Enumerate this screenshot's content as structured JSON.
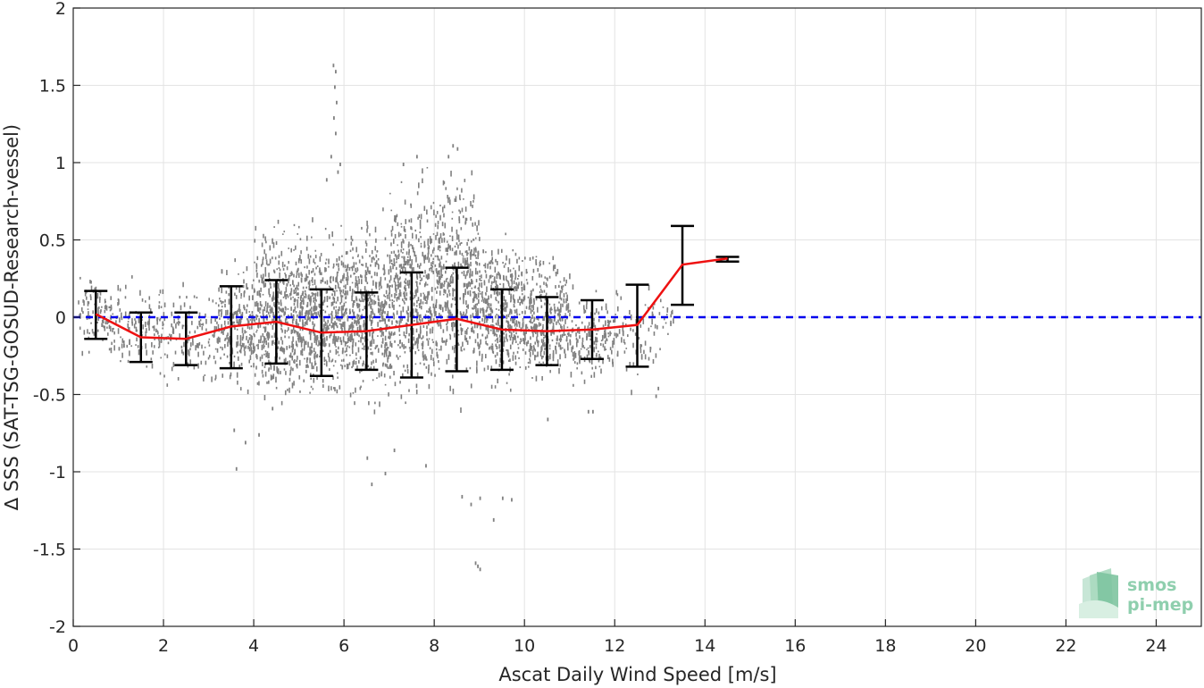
{
  "chart_data": {
    "type": "scatter",
    "xlabel": "Ascat Daily Wind Speed [m/s]",
    "ylabel": "∆ SSS (SAT-TSG-GOSUD-Research-vessel)",
    "xlim": [
      0,
      25
    ],
    "ylim": [
      -2,
      2
    ],
    "xticks": [
      0,
      2,
      4,
      6,
      8,
      10,
      12,
      14,
      16,
      18,
      20,
      22,
      24
    ],
    "yticks": [
      -2,
      -1.5,
      -1,
      -0.5,
      0,
      0.5,
      1,
      1.5,
      2
    ],
    "ytick_labels": [
      "-2",
      "-1.5",
      "-1",
      "-0.5",
      "0",
      "0.5",
      "1",
      "1.5",
      "2"
    ],
    "grid": true,
    "reference_line": {
      "y": 0,
      "style": "dashed",
      "color": "#0000ee"
    },
    "mean_line": {
      "color": "#ee1111",
      "x": [
        0.5,
        1.5,
        2.5,
        3.5,
        4.5,
        5.5,
        6.5,
        7.5,
        8.5,
        9.5,
        10.5,
        11.5,
        12.5,
        13.5,
        14.5
      ],
      "y": [
        0.02,
        -0.13,
        -0.14,
        -0.06,
        -0.03,
        -0.1,
        -0.09,
        -0.05,
        -0.01,
        -0.08,
        -0.09,
        -0.08,
        -0.05,
        0.34,
        0.38
      ]
    },
    "error_bars": {
      "color": "#000000",
      "x": [
        0.5,
        1.5,
        2.5,
        3.5,
        4.5,
        5.5,
        6.5,
        7.5,
        8.5,
        9.5,
        10.5,
        11.5,
        12.5,
        13.5,
        14.5
      ],
      "lower": [
        -0.14,
        -0.29,
        -0.31,
        -0.33,
        -0.3,
        -0.38,
        -0.34,
        -0.39,
        -0.35,
        -0.34,
        -0.31,
        -0.27,
        -0.32,
        0.08,
        0.36
      ],
      "upper": [
        0.17,
        0.03,
        0.03,
        0.2,
        0.24,
        0.18,
        0.16,
        0.29,
        0.32,
        0.18,
        0.13,
        0.11,
        0.21,
        0.59,
        0.39
      ]
    },
    "scatter_color": "#808080",
    "scatter_clusters": [
      {
        "x": [
          0.1,
          1.0
        ],
        "ymin": -0.3,
        "ymax": 0.35,
        "n": 110
      },
      {
        "x": [
          1.0,
          2.0
        ],
        "ymin": -0.45,
        "ymax": 0.32,
        "n": 110
      },
      {
        "x": [
          2.0,
          3.2
        ],
        "ymin": -0.5,
        "ymax": 0.3,
        "n": 120
      },
      {
        "x": [
          3.2,
          4.0
        ],
        "ymin": -0.55,
        "ymax": 0.45,
        "n": 200
      },
      {
        "x": [
          4.0,
          5.0
        ],
        "ymin": -0.65,
        "ymax": 0.72,
        "n": 420
      },
      {
        "x": [
          5.0,
          6.0
        ],
        "ymin": -0.65,
        "ymax": 0.7,
        "n": 440
      },
      {
        "x": [
          6.0,
          7.0
        ],
        "ymin": -0.7,
        "ymax": 0.75,
        "n": 440
      },
      {
        "x": [
          7.0,
          8.0
        ],
        "ymin": -0.7,
        "ymax": 1.08,
        "n": 440
      },
      {
        "x": [
          8.0,
          9.0
        ],
        "ymin": -0.65,
        "ymax": 1.1,
        "n": 440
      },
      {
        "x": [
          9.0,
          10.0
        ],
        "ymin": -0.55,
        "ymax": 0.65,
        "n": 380
      },
      {
        "x": [
          10.0,
          11.0
        ],
        "ymin": -0.5,
        "ymax": 0.5,
        "n": 320
      },
      {
        "x": [
          11.0,
          12.0
        ],
        "ymin": -0.5,
        "ymax": 0.25,
        "n": 160
      },
      {
        "x": [
          12.0,
          13.0
        ],
        "ymin": -0.5,
        "ymax": 0.25,
        "n": 70
      },
      {
        "x": [
          13.0,
          13.3
        ],
        "ymin": -0.15,
        "ymax": 0.2,
        "n": 15
      }
    ],
    "scatter_outliers": [
      [
        5.75,
        1.64
      ],
      [
        5.8,
        1.6
      ],
      [
        5.78,
        1.5
      ],
      [
        5.82,
        1.4
      ],
      [
        5.76,
        1.3
      ],
      [
        5.8,
        1.2
      ],
      [
        5.7,
        1.05
      ],
      [
        5.85,
        0.95
      ],
      [
        5.6,
        0.9
      ],
      [
        5.9,
        1.0
      ],
      [
        3.55,
        -0.72
      ],
      [
        3.6,
        -0.97
      ],
      [
        3.8,
        -0.8
      ],
      [
        4.1,
        -0.75
      ],
      [
        4.4,
        -0.58
      ],
      [
        6.6,
        -1.07
      ],
      [
        6.5,
        -0.9
      ],
      [
        6.9,
        -1.0
      ],
      [
        7.1,
        -0.85
      ],
      [
        7.8,
        -0.95
      ],
      [
        8.6,
        -1.15
      ],
      [
        8.8,
        -1.2
      ],
      [
        9.0,
        -1.16
      ],
      [
        9.3,
        -1.3
      ],
      [
        9.5,
        -1.16
      ],
      [
        9.7,
        -1.17
      ],
      [
        8.95,
        -1.6
      ],
      [
        9.0,
        -1.62
      ],
      [
        8.9,
        -1.58
      ],
      [
        8.3,
        1.05
      ],
      [
        8.4,
        1.12
      ],
      [
        8.5,
        1.1
      ],
      [
        7.3,
        1.0
      ],
      [
        7.6,
        1.05
      ],
      [
        12.9,
        -0.5
      ],
      [
        12.95,
        -0.45
      ],
      [
        11.4,
        -0.6
      ],
      [
        11.5,
        -0.6
      ],
      [
        10.5,
        -0.65
      ]
    ]
  },
  "logo": {
    "line1": "smos",
    "line2": "pi-mep"
  }
}
